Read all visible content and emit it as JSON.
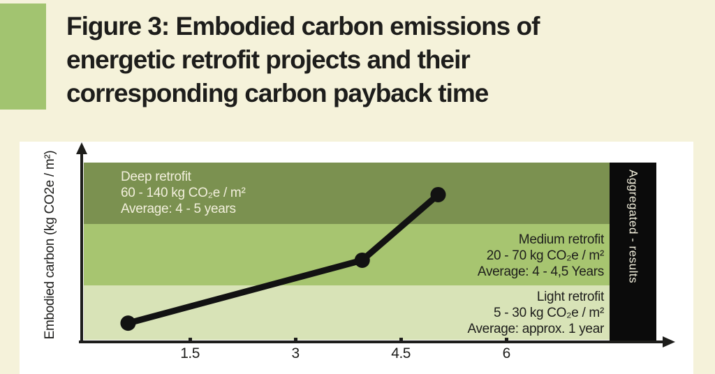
{
  "header": {
    "title_lines": [
      "Figure 3: Embodied carbon emissions of",
      "energetic retrofit projects and their",
      "corresponding carbon payback time"
    ]
  },
  "chart": {
    "y_axis_label": "Embodied carbon (kg CO2e / m²)",
    "aggregated_label": "Aggregated - results",
    "bands": [
      {
        "name": "Deep retrofit",
        "range": "60 - 140 kg CO₂e / m²",
        "average": "Average: 4 - 5 years",
        "color": "#7b9150",
        "text_color": "#f2efdc"
      },
      {
        "name": "Medium retrofit",
        "range": "20 - 70 kg CO₂e / m²",
        "average": "Average: 4 - 4,5 Years",
        "color": "#a7c570",
        "text_color": "#1d1d1b"
      },
      {
        "name": "Light retrofit",
        "range": "5 - 30 kg CO₂e / m²",
        "average": "Average: approx. 1 year",
        "color": "#d8e3b7",
        "text_color": "#1d1d1b"
      }
    ]
  },
  "chart_data": {
    "type": "line",
    "title": "Figure 3: Embodied carbon emissions of energetic retrofit projects and their corresponding carbon payback time",
    "xlabel": "",
    "ylabel": "Embodied carbon (kg CO2e / m²)",
    "x_ticks": [
      1.5,
      3,
      4.5,
      6
    ],
    "x_range": [
      0,
      7.5
    ],
    "grid": false,
    "legend": "none",
    "series": [
      {
        "name": "Aggregated - results",
        "points": [
          {
            "x": 0.62,
            "y_frac": 0.094,
            "carbon_kg_est": 15
          },
          {
            "x": 3.95,
            "y_frac": 0.449,
            "carbon_kg_est": 45
          },
          {
            "x": 5.03,
            "y_frac": 0.819,
            "carbon_kg_est": 100
          }
        ]
      }
    ],
    "bands": [
      {
        "label": "Deep retrofit",
        "carbon_range_kg": [
          60,
          140
        ],
        "average_payback": "4 - 5 years"
      },
      {
        "label": "Medium retrofit",
        "carbon_range_kg": [
          20,
          70
        ],
        "average_payback": "4 - 4,5 Years"
      },
      {
        "label": "Light retrofit",
        "carbon_range_kg": [
          5,
          30
        ],
        "average_payback": "approx. 1 year"
      }
    ]
  },
  "colors": {
    "background": "#f5f2da",
    "accent_green": "#a2c470",
    "deep_band": "#7b9150",
    "medium_band": "#a7c570",
    "light_band": "#d8e3b7",
    "bar_black": "#0b0b0b",
    "line_black": "#121212",
    "axis": "#1d1d1b",
    "title_text": "#1d1d1b"
  }
}
